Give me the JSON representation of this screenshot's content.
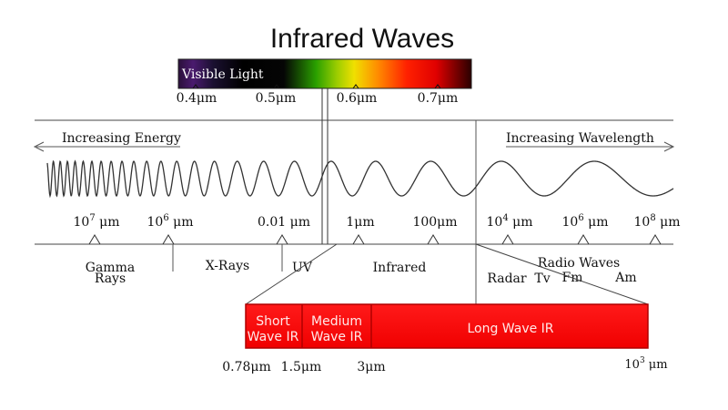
{
  "title": "Infrared Waves",
  "visible_band": {
    "label": "Visible Light",
    "ticks": [
      "0.4μm",
      "0.5μm",
      "0.6μm",
      "0.7μm"
    ]
  },
  "arrows": {
    "left": "Increasing Energy",
    "right": "Increasing Wavelength"
  },
  "scale": {
    "ticks": [
      {
        "base": "10",
        "exp": "7",
        "unit": " μm"
      },
      {
        "base": "10",
        "exp": "6",
        "unit": " μm"
      },
      {
        "base": "0.01",
        "exp": "",
        "unit": " μm"
      },
      {
        "base": "1",
        "exp": "",
        "unit": "μm"
      },
      {
        "base": "100",
        "exp": "",
        "unit": "μm"
      },
      {
        "base": "10",
        "exp": "4",
        "unit": " μm"
      },
      {
        "base": "10",
        "exp": "6",
        "unit": " μm"
      },
      {
        "base": "10",
        "exp": "8",
        "unit": " μm"
      }
    ]
  },
  "regions": {
    "gamma_line1": "Gamma",
    "gamma_line2": "Rays",
    "xrays": "X-Rays",
    "uv": "UV",
    "infrared": "Infrared",
    "radio": "Radio Waves",
    "radar": "Radar",
    "tv": "Tv",
    "fm": "Fm",
    "am": "Am"
  },
  "ir_bands": {
    "short_line1": "Short",
    "short_line2": "Wave IR",
    "medium_line1": "Medium",
    "medium_line2": "Wave IR",
    "long": "Long Wave IR",
    "ticks": [
      "0.78μm",
      "1.5μm",
      "3μm"
    ],
    "end_base": "10",
    "end_exp": "3",
    "end_unit": " μm"
  },
  "colors": {
    "ir_red": "#ff0000",
    "ir_border": "#b00000"
  }
}
